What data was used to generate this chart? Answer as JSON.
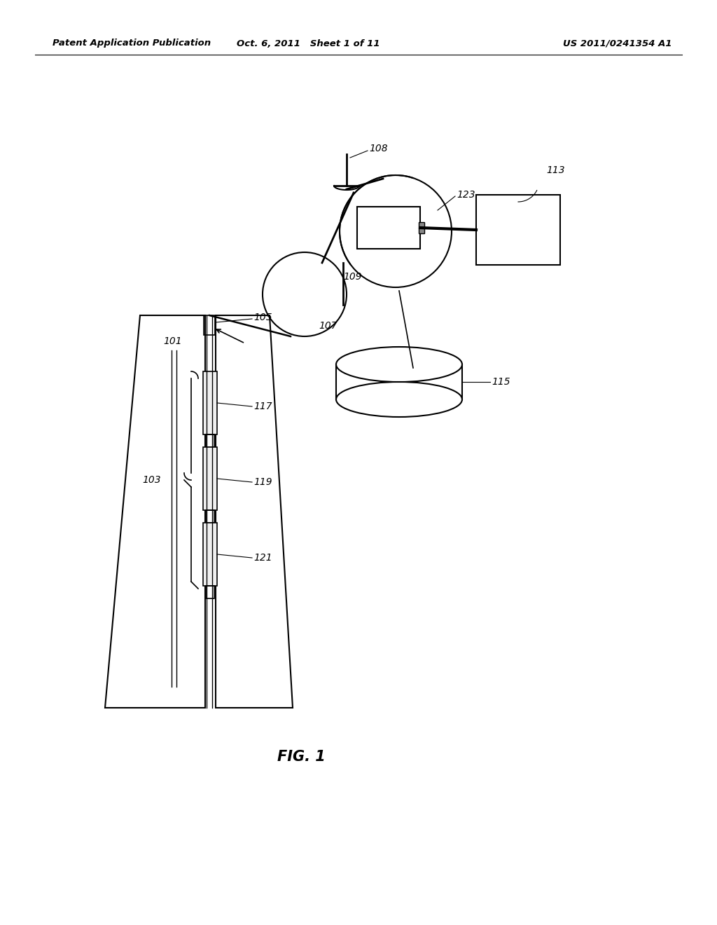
{
  "bg_color": "#ffffff",
  "line_color": "#000000",
  "header_left": "Patent Application Publication",
  "header_mid": "Oct. 6, 2011   Sheet 1 of 11",
  "header_right": "US 2011/0241354 A1",
  "fig_label": "FIG. 1"
}
